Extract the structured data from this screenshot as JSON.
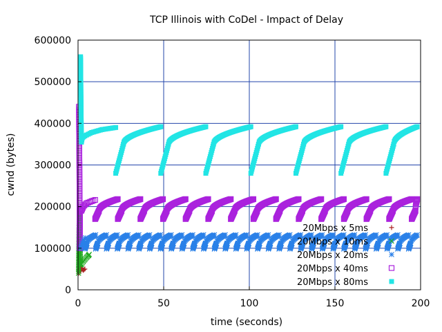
{
  "chart_data": {
    "type": "scatter",
    "title": "TCP Illinois with CoDel - Impact of Delay",
    "xlabel": "time (seconds)",
    "ylabel": "cwnd (bytes)",
    "xlim": [
      0,
      200
    ],
    "ylim": [
      0,
      600000
    ],
    "x_ticks": [
      "0",
      "50",
      "100",
      "150",
      "200"
    ],
    "y_ticks": [
      "0",
      "100000",
      "200000",
      "300000",
      "400000",
      "500000",
      "600000"
    ],
    "grid": true,
    "grid_color": "#2244aa",
    "legend_position": "bottom-right",
    "series": [
      {
        "name": "20Mbps x 5ms",
        "marker": "plus",
        "color": "#aa2222",
        "points": [
          [
            0.5,
            40000
          ],
          [
            1.0,
            55000
          ],
          [
            1.5,
            45000
          ],
          [
            2.0,
            52000
          ],
          [
            3.0,
            47000
          ],
          [
            4.0,
            50000
          ]
        ]
      },
      {
        "name": "20Mbps x 10ms",
        "marker": "cross",
        "color": "#22aa22",
        "points": [
          [
            0.3,
            40000
          ],
          [
            0.6,
            150000
          ],
          [
            1.0,
            185000
          ],
          [
            1.4,
            60000
          ],
          [
            2.0,
            62000
          ],
          [
            3.0,
            68000
          ],
          [
            4.0,
            73000
          ],
          [
            5.0,
            78000
          ],
          [
            6.0,
            82000
          ],
          [
            6.5,
            85000
          ]
        ]
      },
      {
        "name": "20Mbps x 20ms",
        "marker": "star",
        "color": "#2a80e8",
        "sawtooth": {
          "start": 4,
          "end": 198,
          "period": 6.3,
          "rise": 1.2,
          "low": 98000,
          "jump": 112000,
          "high": 132000
        }
      },
      {
        "name": "20Mbps x 40ms",
        "marker": "open-square",
        "color": "#aa22dd",
        "sawtooth": {
          "start": 10,
          "end": 198,
          "period": 13.2,
          "rise": 2.2,
          "low": 170000,
          "jump": 190000,
          "high": 218000
        }
      },
      {
        "name": "20Mbps x 80ms",
        "marker": "filled-square",
        "color": "#22e5e5",
        "sawtooth": {
          "start": 22,
          "end": 198,
          "period": 26.3,
          "rise": 4.5,
          "low": 280000,
          "jump": 350000,
          "high": 392000
        }
      }
    ],
    "startup": [
      {
        "series": 3,
        "points": [
          [
            0.5,
            440000
          ],
          [
            0.8,
            300000
          ],
          [
            1.0,
            100000
          ],
          [
            1.2,
            200000
          ],
          [
            1.5,
            190000
          ]
        ]
      },
      {
        "series": 4,
        "points": [
          [
            1.5,
            560000
          ],
          [
            1.8,
            420000
          ],
          [
            2.0,
            355000
          ],
          [
            2.5,
            365000
          ],
          [
            4.0,
            370000
          ],
          [
            8.0,
            378000
          ],
          [
            14.0,
            385000
          ],
          [
            22.0,
            390000
          ]
        ]
      },
      {
        "series": 3,
        "points": [
          [
            2.0,
            190000
          ],
          [
            3.0,
            200000
          ],
          [
            5.0,
            208000
          ],
          [
            8.0,
            213000
          ],
          [
            10.0,
            216000
          ]
        ]
      },
      {
        "series": 2,
        "points": [
          [
            1.5,
            100000
          ],
          [
            2.5,
            112000
          ],
          [
            3.5,
            120000
          ],
          [
            4.5,
            125000
          ]
        ]
      }
    ]
  }
}
